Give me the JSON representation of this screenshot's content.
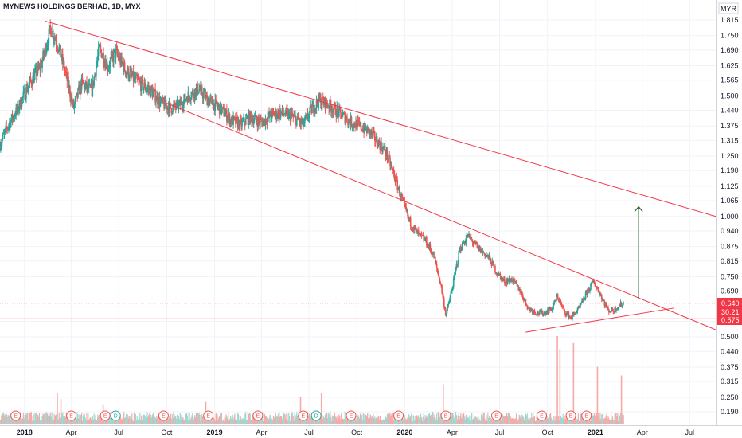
{
  "title": "MYNEWS HOLDINGS BERHAD, 1D, MYX",
  "currency": "MYR",
  "colors": {
    "up": "#26a69a",
    "down": "#ef5350",
    "trendline": "#f23645",
    "arrow": "#1b5e20",
    "last_price_bg": "#f23645",
    "support_bg": "#f23645",
    "grid": "#f0f3fa",
    "axis_text": "#131722"
  },
  "chart_data": {
    "type": "candlestick",
    "x_range": [
      "2017-11-15",
      "2021-08-20"
    ],
    "ylim": [
      0.17,
      1.85
    ],
    "price_axis_ticks": [
      "1.815",
      "1.750",
      "1.690",
      "1.625",
      "1.565",
      "1.500",
      "1.440",
      "1.375",
      "1.315",
      "1.250",
      "1.190",
      "1.125",
      "1.065",
      "1.000",
      "0.940",
      "0.875",
      "0.815",
      "0.750",
      "0.690",
      "0.625",
      "0.565",
      "0.500",
      "0.440",
      "0.375",
      "0.315",
      "0.250",
      "0.190"
    ],
    "time_axis_ticks": [
      {
        "label": "2018",
        "date": "2018-01-01"
      },
      {
        "label": "Apr",
        "date": "2018-04-01"
      },
      {
        "label": "Jul",
        "date": "2018-07-01"
      },
      {
        "label": "Oct",
        "date": "2018-10-01"
      },
      {
        "label": "2019",
        "date": "2019-01-01"
      },
      {
        "label": "Apr",
        "date": "2019-04-01"
      },
      {
        "label": "Jul",
        "date": "2019-07-01"
      },
      {
        "label": "Oct",
        "date": "2019-10-01"
      },
      {
        "label": "2020",
        "date": "2020-01-01"
      },
      {
        "label": "Apr",
        "date": "2020-04-01"
      },
      {
        "label": "Jul",
        "date": "2020-07-01"
      },
      {
        "label": "Oct",
        "date": "2020-10-01"
      },
      {
        "label": "2021",
        "date": "2021-01-01"
      },
      {
        "label": "Apr",
        "date": "2021-04-01"
      },
      {
        "label": "Jul",
        "date": "2021-07-01"
      }
    ],
    "price_path": [
      [
        "2017-11-15",
        1.3
      ],
      [
        "2017-12-01",
        1.38
      ],
      [
        "2017-12-20",
        1.45
      ],
      [
        "2018-01-10",
        1.55
      ],
      [
        "2018-02-01",
        1.62
      ],
      [
        "2018-02-20",
        1.78
      ],
      [
        "2018-03-05",
        1.72
      ],
      [
        "2018-03-20",
        1.6
      ],
      [
        "2018-04-05",
        1.45
      ],
      [
        "2018-04-20",
        1.55
      ],
      [
        "2018-05-10",
        1.52
      ],
      [
        "2018-05-25",
        1.7
      ],
      [
        "2018-06-10",
        1.62
      ],
      [
        "2018-06-25",
        1.68
      ],
      [
        "2018-07-10",
        1.62
      ],
      [
        "2018-07-25",
        1.58
      ],
      [
        "2018-08-10",
        1.55
      ],
      [
        "2018-09-01",
        1.52
      ],
      [
        "2018-09-20",
        1.47
      ],
      [
        "2018-10-10",
        1.45
      ],
      [
        "2018-10-25",
        1.46
      ],
      [
        "2018-11-10",
        1.5
      ],
      [
        "2018-12-01",
        1.53
      ],
      [
        "2018-12-20",
        1.48
      ],
      [
        "2019-01-10",
        1.45
      ],
      [
        "2019-02-01",
        1.4
      ],
      [
        "2019-02-20",
        1.38
      ],
      [
        "2019-03-10",
        1.41
      ],
      [
        "2019-04-01",
        1.39
      ],
      [
        "2019-04-20",
        1.42
      ],
      [
        "2019-05-10",
        1.43
      ],
      [
        "2019-06-01",
        1.41
      ],
      [
        "2019-06-20",
        1.38
      ],
      [
        "2019-07-05",
        1.44
      ],
      [
        "2019-07-20",
        1.48
      ],
      [
        "2019-08-10",
        1.46
      ],
      [
        "2019-09-01",
        1.42
      ],
      [
        "2019-09-20",
        1.39
      ],
      [
        "2019-10-10",
        1.37
      ],
      [
        "2019-10-25",
        1.35
      ],
      [
        "2019-11-10",
        1.31
      ],
      [
        "2019-11-25",
        1.27
      ],
      [
        "2019-12-10",
        1.18
      ],
      [
        "2019-12-25",
        1.08
      ],
      [
        "2020-01-10",
        0.98
      ],
      [
        "2020-01-25",
        0.93
      ],
      [
        "2020-02-10",
        0.9
      ],
      [
        "2020-02-25",
        0.84
      ],
      [
        "2020-03-10",
        0.72
      ],
      [
        "2020-03-20",
        0.59
      ],
      [
        "2020-04-01",
        0.7
      ],
      [
        "2020-04-15",
        0.86
      ],
      [
        "2020-05-01",
        0.92
      ],
      [
        "2020-05-20",
        0.87
      ],
      [
        "2020-06-10",
        0.83
      ],
      [
        "2020-06-25",
        0.77
      ],
      [
        "2020-07-10",
        0.73
      ],
      [
        "2020-07-25",
        0.74
      ],
      [
        "2020-08-10",
        0.69
      ],
      [
        "2020-08-25",
        0.62
      ],
      [
        "2020-09-10",
        0.6
      ],
      [
        "2020-09-25",
        0.6
      ],
      [
        "2020-10-10",
        0.62
      ],
      [
        "2020-10-20",
        0.67
      ],
      [
        "2020-11-01",
        0.61
      ],
      [
        "2020-11-15",
        0.58
      ],
      [
        "2020-12-01",
        0.62
      ],
      [
        "2020-12-15",
        0.68
      ],
      [
        "2020-12-28",
        0.73
      ],
      [
        "2021-01-10",
        0.68
      ],
      [
        "2021-01-25",
        0.61
      ],
      [
        "2021-02-05",
        0.61
      ],
      [
        "2021-02-15",
        0.63
      ],
      [
        "2021-02-25",
        0.64
      ]
    ],
    "trendlines": [
      {
        "name": "upper",
        "from": [
          "2018-02-10",
          1.81
        ],
        "to": [
          "2021-08-20",
          1.0
        ]
      },
      {
        "name": "middle",
        "from": [
          "2018-10-01",
          1.47
        ],
        "to": [
          "2021-08-20",
          0.53
        ]
      },
      {
        "name": "lower",
        "from": [
          "2020-08-20",
          0.52
        ],
        "to": [
          "2021-06-01",
          0.62
        ]
      },
      {
        "name": "support",
        "from": [
          "2017-11-15",
          0.575
        ],
        "to": [
          "2021-08-20",
          0.575
        ]
      }
    ],
    "projection_arrow": {
      "date": "2021-03-25",
      "from": 0.66,
      "to": 1.04
    },
    "events": [
      {
        "date": "2017-12-15",
        "type": "E"
      },
      {
        "date": "2018-04-01",
        "type": "E"
      },
      {
        "date": "2018-06-05",
        "type": "E"
      },
      {
        "date": "2018-06-25",
        "type": "D"
      },
      {
        "date": "2018-09-25",
        "type": "E"
      },
      {
        "date": "2018-12-20",
        "type": "E"
      },
      {
        "date": "2019-03-25",
        "type": "E"
      },
      {
        "date": "2019-06-20",
        "type": "E"
      },
      {
        "date": "2019-07-15",
        "type": "D"
      },
      {
        "date": "2019-09-20",
        "type": "E"
      },
      {
        "date": "2019-12-20",
        "type": "E"
      },
      {
        "date": "2020-03-20",
        "type": "E"
      },
      {
        "date": "2020-06-25",
        "type": "E"
      },
      {
        "date": "2020-09-20",
        "type": "E"
      },
      {
        "date": "2020-11-15",
        "type": "E"
      },
      {
        "date": "2020-12-15",
        "type": "E"
      }
    ],
    "volume_spikes": [
      {
        "date": "2018-03-05",
        "value": 0.35
      },
      {
        "date": "2018-03-12",
        "value": 0.28
      },
      {
        "date": "2018-06-01",
        "value": 0.22
      },
      {
        "date": "2018-12-15",
        "value": 0.25
      },
      {
        "date": "2019-06-15",
        "value": 0.3
      },
      {
        "date": "2019-07-25",
        "value": 0.35
      },
      {
        "date": "2020-03-15",
        "value": 0.45
      },
      {
        "date": "2020-10-20",
        "value": 1.0
      },
      {
        "date": "2020-10-25",
        "value": 0.85
      },
      {
        "date": "2020-11-20",
        "value": 0.92
      },
      {
        "date": "2021-01-05",
        "value": 0.65
      },
      {
        "date": "2021-02-20",
        "value": 0.55
      }
    ]
  },
  "price_labels": {
    "last_price": "0.640",
    "countdown": "30:21",
    "support": "0.575"
  }
}
